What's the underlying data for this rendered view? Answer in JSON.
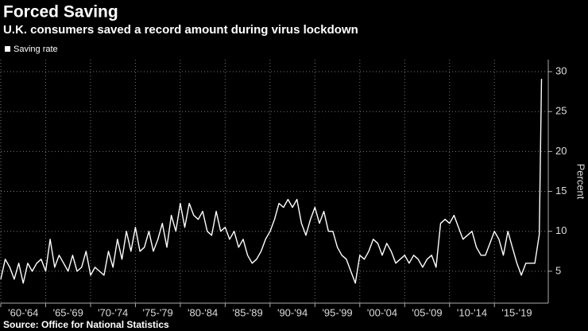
{
  "chart_data": {
    "type": "line",
    "title": "Forced Saving",
    "subtitle": "U.K. consumers saved a record amount during virus lockdown",
    "y_label": "Percent",
    "source": "Source: Office for National Statistics",
    "x": [
      1960,
      1960.5,
      1961,
      1961.5,
      1962,
      1962.5,
      1963,
      1963.5,
      1964,
      1964.5,
      1965,
      1965.5,
      1966,
      1966.5,
      1967,
      1967.5,
      1968,
      1968.5,
      1969,
      1969.5,
      1970,
      1970.5,
      1971,
      1971.5,
      1972,
      1972.5,
      1973,
      1973.5,
      1974,
      1974.5,
      1975,
      1975.5,
      1976,
      1976.5,
      1977,
      1977.5,
      1978,
      1978.5,
      1979,
      1979.5,
      1980,
      1980.5,
      1981,
      1981.5,
      1982,
      1982.5,
      1983,
      1983.5,
      1984,
      1984.5,
      1985,
      1985.5,
      1986,
      1986.5,
      1987,
      1987.5,
      1988,
      1988.5,
      1989,
      1989.5,
      1990,
      1990.5,
      1991,
      1991.5,
      1992,
      1992.5,
      1993,
      1993.5,
      1994,
      1994.5,
      1995,
      1995.5,
      1996,
      1996.5,
      1997,
      1997.5,
      1998,
      1998.5,
      1999,
      1999.5,
      2000,
      2000.5,
      2001,
      2001.5,
      2002,
      2002.5,
      2003,
      2003.5,
      2004,
      2004.5,
      2005,
      2005.5,
      2006,
      2006.5,
      2007,
      2007.5,
      2008,
      2008.5,
      2009,
      2009.5,
      2010,
      2010.5,
      2011,
      2011.5,
      2012,
      2012.5,
      2013,
      2013.5,
      2014,
      2014.5,
      2015,
      2015.5,
      2016,
      2016.5,
      2017,
      2017.5,
      2018,
      2018.5,
      2019,
      2019.5,
      2020,
      2020.25
    ],
    "series": [
      {
        "name": "Saving rate",
        "color": "#ffffff",
        "values": [
          4,
          6.5,
          5.5,
          4,
          6,
          3.5,
          6,
          5,
          6,
          6.5,
          5,
          9,
          5.5,
          7,
          6,
          5,
          7,
          5,
          5.5,
          7.5,
          4.5,
          5.5,
          5,
          4.5,
          7.5,
          5.5,
          9,
          6.5,
          10,
          7.5,
          10.5,
          7.5,
          8,
          10,
          7.5,
          9,
          11,
          8,
          12,
          10,
          13.5,
          10.5,
          13.5,
          12,
          11.5,
          12.5,
          10,
          9.5,
          12.5,
          10,
          10.5,
          9,
          10,
          8,
          9,
          7,
          6,
          6.5,
          7.5,
          9,
          10,
          11.5,
          13.5,
          13,
          14,
          13,
          14,
          11,
          9.5,
          11.5,
          13,
          11,
          12.5,
          10,
          10,
          8,
          7,
          6.5,
          5,
          3.5,
          7,
          6.5,
          7.5,
          9,
          8.5,
          7,
          8.5,
          7.5,
          6,
          6.5,
          7,
          6,
          7,
          6.5,
          5.5,
          6.5,
          7,
          5.5,
          11,
          11.5,
          11,
          12,
          10.5,
          9,
          9.5,
          10,
          8,
          7,
          7,
          8.5,
          10,
          9,
          7,
          10,
          8,
          6,
          4.5,
          6,
          6,
          6,
          9.6,
          29.1
        ]
      }
    ],
    "xlim": [
      1960,
      2021
    ],
    "ylim": [
      1,
      31.5
    ],
    "xticks": [
      {
        "value": 1960,
        "label": "'60-'64"
      },
      {
        "value": 1965,
        "label": "'65-'69"
      },
      {
        "value": 1970,
        "label": "'70-'74"
      },
      {
        "value": 1975,
        "label": "'75-'79"
      },
      {
        "value": 1980,
        "label": "'80-'84"
      },
      {
        "value": 1985,
        "label": "'85-'89"
      },
      {
        "value": 1990,
        "label": "'90-'94"
      },
      {
        "value": 1995,
        "label": "'95-'99"
      },
      {
        "value": 2000,
        "label": "'00-'04"
      },
      {
        "value": 2005,
        "label": "'05-'09"
      },
      {
        "value": 2010,
        "label": "'10-'14"
      },
      {
        "value": 2015,
        "label": "'15-'19"
      }
    ],
    "yticks": [
      5,
      10,
      15,
      20,
      25,
      30
    ],
    "grid": true,
    "legend": "top-left"
  }
}
